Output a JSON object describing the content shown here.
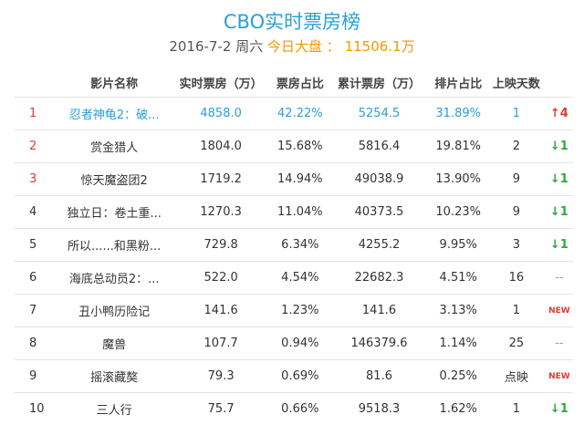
{
  "header": {
    "title": "CBO实时票房榜",
    "date": "2016-7-2 周六",
    "total_label": "今日大盘 ：",
    "total": "11506.1万"
  },
  "table": {
    "columns": [
      "",
      "影片名称",
      "实时票房（万）",
      "票房占比",
      "累计票房（万）",
      "排片占比",
      "上映天数",
      ""
    ],
    "rows": [
      [
        "1",
        "忍者神龟2：破...",
        "4858.0",
        "42.22%",
        "5254.5",
        "31.89%",
        "1",
        "↑4"
      ],
      [
        "2",
        "赏金猎人",
        "1804.0",
        "15.68%",
        "5816.4",
        "19.81%",
        "2",
        "↓1"
      ],
      [
        "3",
        "惊天魔盗团2",
        "1719.2",
        "14.94%",
        "49038.9",
        "13.90%",
        "9",
        "↓1"
      ],
      [
        "4",
        "独立日：卷土重...",
        "1270.3",
        "11.04%",
        "40373.5",
        "10.23%",
        "9",
        "↓1"
      ],
      [
        "5",
        "所以......和黑粉...",
        "729.8",
        "6.34%",
        "4255.2",
        "9.95%",
        "3",
        "↓1"
      ],
      [
        "6",
        "海底总动员2：...",
        "522.0",
        "4.54%",
        "22682.3",
        "4.51%",
        "16",
        "--"
      ],
      [
        "7",
        "丑小鸭历险记",
        "141.6",
        "1.23%",
        "141.6",
        "3.13%",
        "1",
        "NEW"
      ],
      [
        "8",
        "魔兽",
        "107.7",
        "0.94%",
        "146379.6",
        "1.14%",
        "25",
        "--"
      ],
      [
        "9",
        "摇滚藏獒",
        "79.3",
        "0.69%",
        "81.6",
        "0.25%",
        "点映",
        "NEW"
      ],
      [
        "10",
        "三人行",
        "75.7",
        "0.66%",
        "9518.3",
        "1.62%",
        "1",
        "↓1"
      ]
    ]
  }
}
